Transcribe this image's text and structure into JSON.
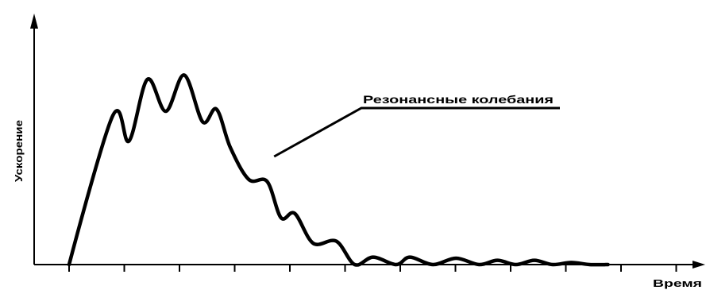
{
  "chart_data": {
    "type": "line",
    "title": "",
    "xlabel": "Время",
    "ylabel": "Ускорение",
    "xlim": [
      0,
      12
    ],
    "ylim": [
      0,
      1
    ],
    "grid": false,
    "legend": "none",
    "x_tick_count": 12,
    "series": [
      {
        "x": [
          0,
          0.95,
          1.3,
          1.7,
          2.1,
          2.5,
          2.9,
          3.2,
          3.5,
          3.9,
          4.3,
          4.6,
          4.9,
          5.3,
          5.8,
          6.2,
          6.6,
          7.1,
          7.4,
          7.9,
          8.4,
          8.9,
          9.3,
          9.7,
          10.1,
          10.5,
          10.9,
          11.3,
          11.7
        ],
        "y": [
          0,
          0.7,
          0.58,
          0.87,
          0.72,
          0.89,
          0.67,
          0.73,
          0.55,
          0.4,
          0.39,
          0.22,
          0.24,
          0.1,
          0.11,
          0.0,
          0.035,
          0.0,
          0.035,
          0.0,
          0.03,
          0.0,
          0.02,
          0.0,
          0.02,
          0.0,
          0.01,
          0.0,
          0.0
        ]
      }
    ],
    "annotations": [
      {
        "text": "Резонансные колебания",
        "x": 4.4,
        "y": 0.5
      }
    ],
    "colors": {
      "line": "#000000",
      "axis": "#000000"
    }
  }
}
